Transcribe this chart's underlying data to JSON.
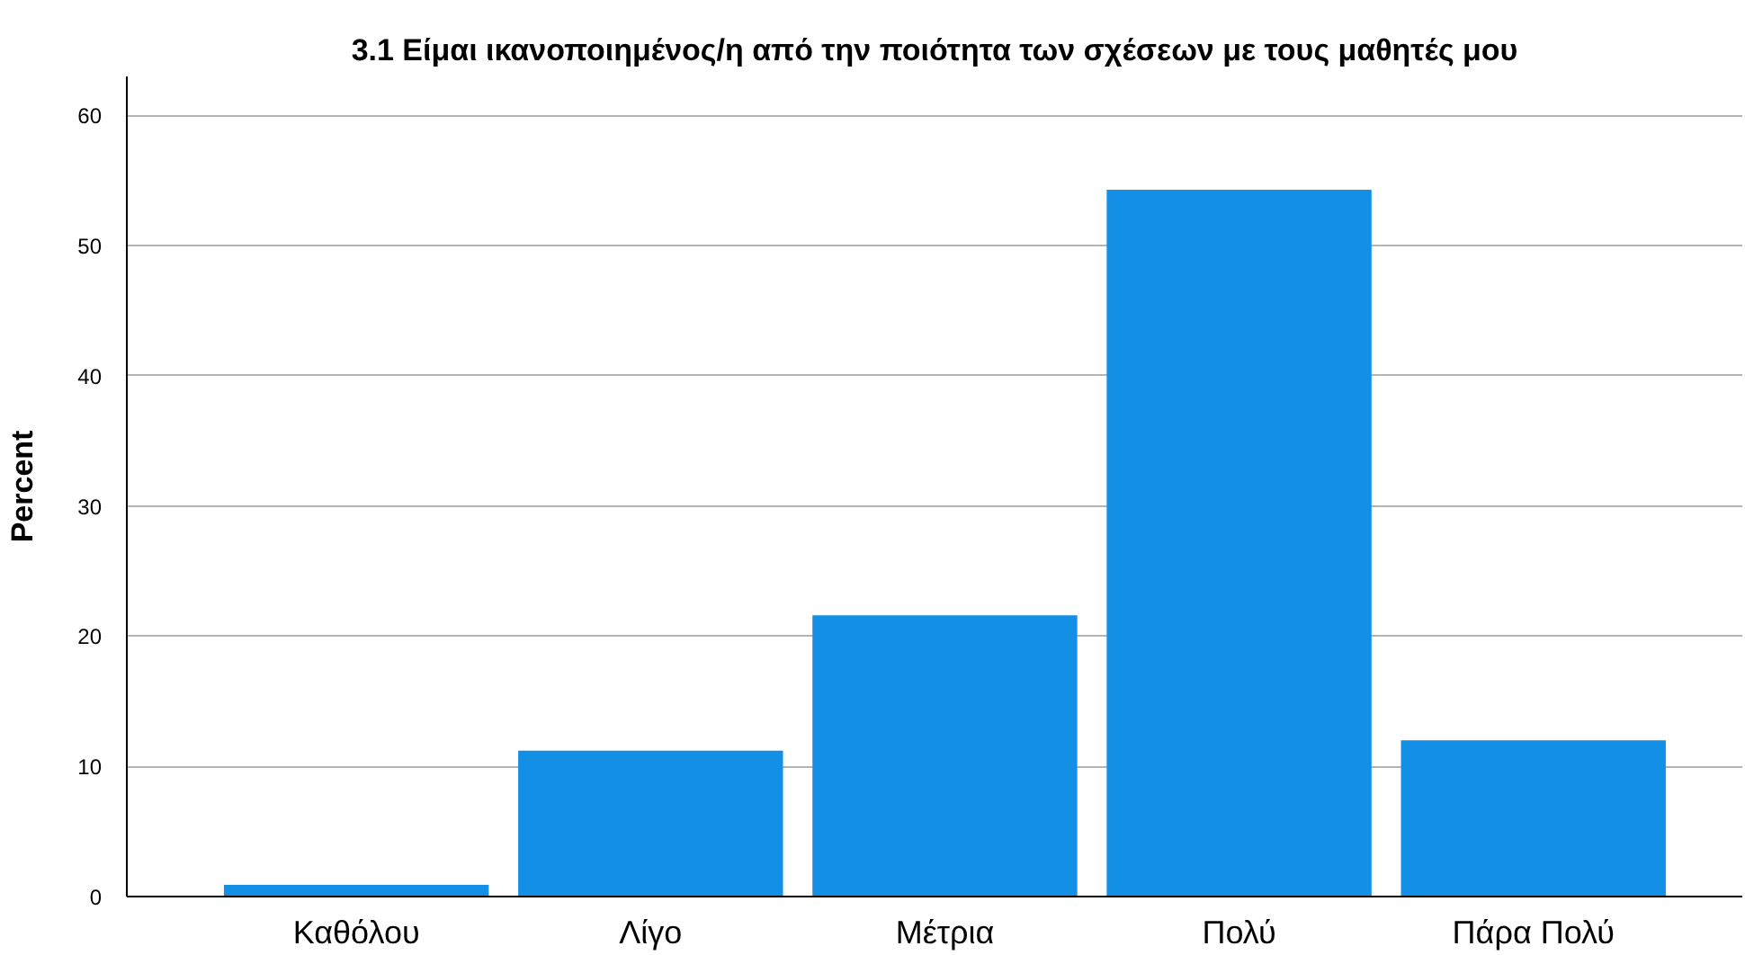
{
  "chart_data": {
    "type": "bar",
    "title": "3.1 Είμαι ικανοποιημένος/η από την ποιότητα των σχέσεων με τους μαθητές μου",
    "ylabel": "Percent",
    "categories": [
      "Καθόλου",
      "Λίγο",
      "Μέτρια",
      "Πολύ",
      "Πάρα Πολύ"
    ],
    "values": [
      0.9,
      11.2,
      21.6,
      54.3,
      12.0
    ],
    "color": "#1390e6",
    "ylim": [
      0,
      63
    ],
    "yticks": [
      0,
      10,
      20,
      30,
      40,
      50,
      60
    ],
    "grid": "y"
  }
}
